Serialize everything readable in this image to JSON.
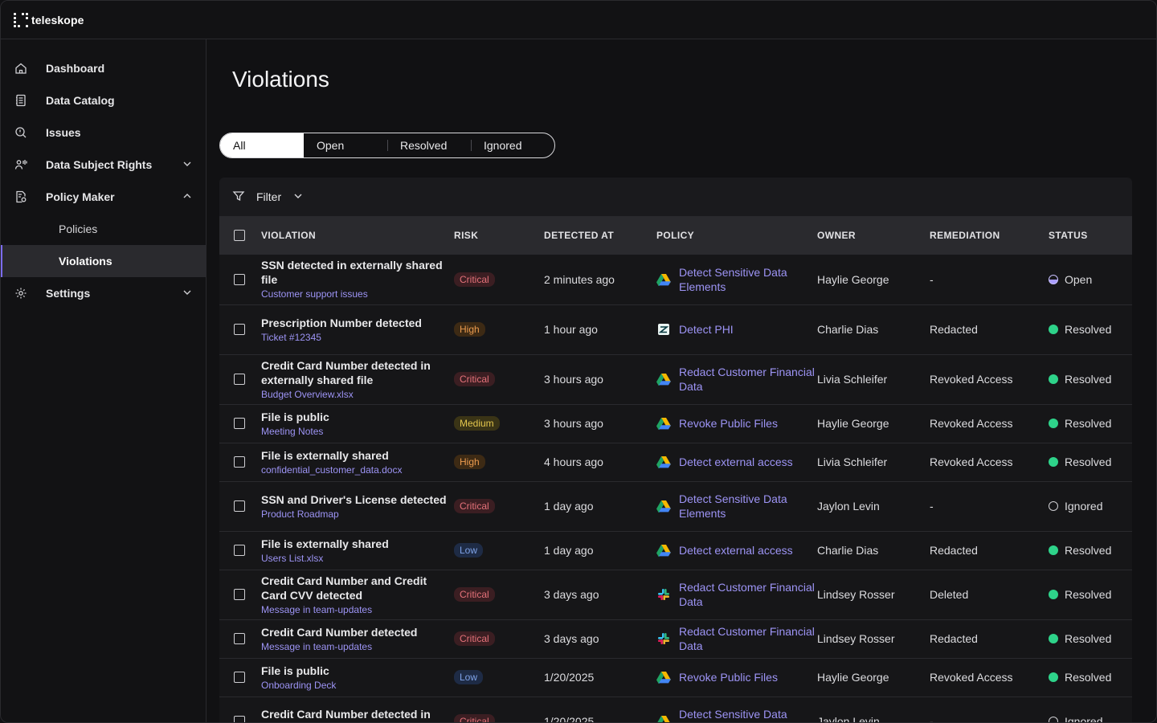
{
  "brand": {
    "name": "teleskope"
  },
  "sidebar": {
    "items": [
      {
        "label": "Dashboard",
        "icon": "home-icon"
      },
      {
        "label": "Data Catalog",
        "icon": "catalog-icon"
      },
      {
        "label": "Issues",
        "icon": "issues-icon"
      },
      {
        "label": "Data Subject Rights",
        "icon": "user-rights-icon",
        "expanded": false
      },
      {
        "label": "Policy Maker",
        "icon": "policy-icon",
        "expanded": true
      },
      {
        "label": "Settings",
        "icon": "gear-icon",
        "expanded": false
      }
    ],
    "sub_items": [
      {
        "label": "Policies"
      },
      {
        "label": "Violations",
        "active": true
      }
    ]
  },
  "page": {
    "title": "Violations"
  },
  "tabs": [
    {
      "label": "All",
      "active": true
    },
    {
      "label": "Open"
    },
    {
      "label": "Resolved"
    },
    {
      "label": "Ignored"
    }
  ],
  "filter": {
    "label": "Filter"
  },
  "table": {
    "columns": [
      "VIOLATION",
      "RISK",
      "DETECTED AT",
      "POLICY",
      "OWNER",
      "REMEDIATION",
      "STATUS"
    ],
    "rows": [
      {
        "title": "SSN detected in externally shared file",
        "source": "Customer support issues",
        "risk": "Critical",
        "detected": "2 minutes ago",
        "policy": "Detect Sensitive Data Elements",
        "policy_icon": "google-drive-icon",
        "owner": "Haylie George",
        "remediation": "-",
        "status": "Open"
      },
      {
        "title": "Prescription Number detected",
        "source": "Ticket #12345",
        "risk": "High",
        "detected": "1 hour ago",
        "policy": "Detect PHI",
        "policy_icon": "zendesk-icon",
        "owner": "Charlie Dias",
        "remediation": "Redacted",
        "status": "Resolved"
      },
      {
        "title": "Credit Card Number detected in externally shared file",
        "source": "Budget Overview.xlsx",
        "risk": "Critical",
        "detected": "3 hours ago",
        "policy": "Redact Customer Financial Data",
        "policy_icon": "google-drive-icon",
        "owner": "Livia Schleifer",
        "remediation": "Revoked Access",
        "status": "Resolved"
      },
      {
        "title": "File is public",
        "source": "Meeting Notes",
        "risk": "Medium",
        "detected": "3 hours ago",
        "policy": "Revoke Public Files",
        "policy_icon": "google-drive-icon",
        "owner": "Haylie George",
        "remediation": "Revoked Access",
        "status": "Resolved"
      },
      {
        "title": "File is externally shared",
        "source": "confidential_customer_data.docx",
        "risk": "High",
        "detected": "4 hours ago",
        "policy": "Detect external access",
        "policy_icon": "google-drive-icon",
        "owner": "Livia Schleifer",
        "remediation": "Revoked Access",
        "status": "Resolved"
      },
      {
        "title": "SSN and Driver's License detected",
        "source": "Product Roadmap",
        "risk": "Critical",
        "detected": "1 day ago",
        "policy": "Detect Sensitive Data Elements",
        "policy_icon": "google-drive-icon",
        "owner": "Jaylon Levin",
        "remediation": "-",
        "status": "Ignored"
      },
      {
        "title": "File is externally shared",
        "source": "Users List.xlsx",
        "risk": "Low",
        "detected": "1 day ago",
        "policy": "Detect external access",
        "policy_icon": "google-drive-icon",
        "owner": "Charlie Dias",
        "remediation": "Redacted",
        "status": "Resolved"
      },
      {
        "title": "Credit Card Number and Credit Card CVV detected",
        "source": "Message in team-updates",
        "risk": "Critical",
        "detected": "3 days ago",
        "policy": "Redact Customer Financial Data",
        "policy_icon": "slack-icon",
        "owner": "Lindsey Rosser",
        "remediation": "Deleted",
        "status": "Resolved"
      },
      {
        "title": "Credit Card Number detected",
        "source": "Message in team-updates",
        "risk": "Critical",
        "detected": "3 days ago",
        "policy": "Redact Customer Financial Data",
        "policy_icon": "slack-icon",
        "owner": "Lindsey Rosser",
        "remediation": "Redacted",
        "status": "Resolved"
      },
      {
        "title": "File is public",
        "source": "Onboarding Deck",
        "risk": "Low",
        "detected": "1/20/2025",
        "policy": "Revoke Public Files",
        "policy_icon": "google-drive-icon",
        "owner": "Haylie George",
        "remediation": "Revoked Access",
        "status": "Resolved"
      },
      {
        "title": "Credit Card Number detected in public file",
        "source": "",
        "risk": "Critical",
        "detected": "1/20/2025",
        "policy": "Detect Sensitive Data Elements",
        "policy_icon": "google-drive-icon",
        "owner": "Jaylon Levin",
        "remediation": "-",
        "status": "Ignored"
      }
    ]
  }
}
